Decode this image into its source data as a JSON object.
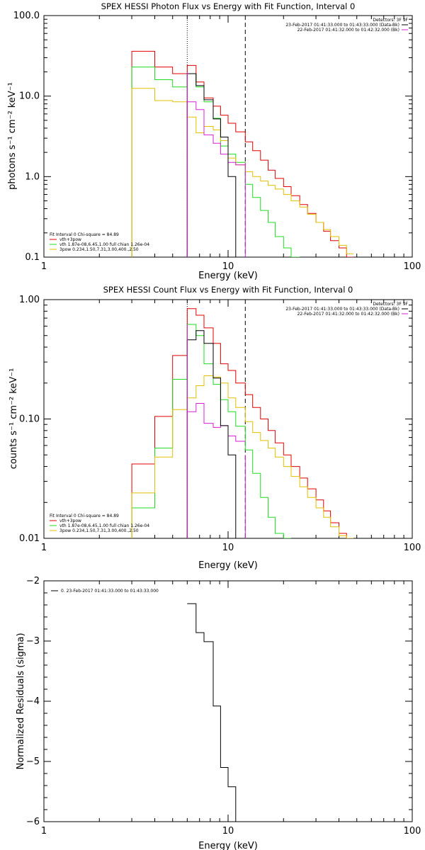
{
  "colors": {
    "black": "#000000",
    "red": "#e00000",
    "green": "#1fdc1f",
    "magenta": "#d81fd8",
    "yellow": "#e0c000",
    "blue": "#2020ff"
  },
  "chart_data": [
    {
      "type": "line",
      "title": "SPEX HESSI Photon Flux vs Energy with Fit Function, Interval 0",
      "xlabel": "Energy (keV)",
      "ylabel": "photons s⁻¹ cm⁻² keV⁻¹",
      "xscale": "log",
      "yscale": "log",
      "xlim": [
        1,
        100
      ],
      "ylim": [
        0.1,
        100
      ],
      "xticks": [
        {
          "v": 1,
          "label": "1"
        },
        {
          "v": 10,
          "label": "10"
        },
        {
          "v": 100,
          "label": "100"
        }
      ],
      "yticks": [
        {
          "v": 0.1,
          "label": "0.1"
        },
        {
          "v": 1,
          "label": "1.0"
        },
        {
          "v": 10,
          "label": "10.0"
        },
        {
          "v": 100,
          "label": "100.0"
        }
      ],
      "vlines": [
        {
          "x": 6,
          "style": "dotted",
          "color": "black"
        },
        {
          "x": 12.4,
          "style": "dashed",
          "color": "black"
        }
      ],
      "edges": [
        3,
        4,
        5,
        6,
        6.7,
        7.4,
        8.3,
        9.1,
        10,
        11,
        12.4,
        13.6,
        15,
        16.5,
        18,
        20,
        22,
        24.5,
        27,
        30,
        33,
        36,
        40,
        44,
        48
      ],
      "series": [
        {
          "key": "red",
          "color": "red",
          "values": [
            36,
            23,
            19,
            24,
            15,
            9.5,
            7.5,
            5.8,
            4.6,
            3.6,
            2.7,
            2.1,
            1.6,
            1.2,
            0.95,
            0.75,
            0.58,
            0.45,
            0.35,
            0.27,
            0.21,
            0.16,
            0.13,
            0.1
          ]
        },
        {
          "key": "green",
          "color": "green",
          "values": [
            23,
            16,
            13,
            19,
            13,
            8.5,
            5.3,
            2.4,
            1.9,
            1.5,
            0.8,
            0.55,
            0.38,
            0.27,
            0.18,
            0.13,
            0.1
          ]
        },
        {
          "key": "yellow",
          "color": "yellow",
          "values": [
            12.5,
            8.8,
            8.5,
            5.5,
            3.5,
            4.2,
            3.8,
            2.8,
            1.7,
            1.4,
            1.15,
            1.0,
            0.88,
            0.78,
            0.7,
            0.6,
            0.5,
            0.42,
            0.34,
            0.27,
            0.22,
            0.18,
            0.14,
            0.11
          ]
        },
        {
          "key": "magenta",
          "color": "magenta",
          "startIndex": 3,
          "values": [
            8.5,
            6.8,
            3.3,
            2.6,
            1.9,
            1.5,
            1.4
          ]
        },
        {
          "key": "black",
          "color": "black",
          "startIndex": 3,
          "values": [
            19,
            13.5,
            9,
            5.2,
            3.1,
            1.0,
            0.1
          ]
        }
      ],
      "vertical_segments": [
        {
          "x": 6,
          "from": 0.1,
          "to": 20,
          "color": "magenta"
        },
        {
          "x": 12.4,
          "from": 0.1,
          "to": 1.5,
          "color": "magenta"
        }
      ],
      "legend_topright": {
        "heading": "Detectors: 3F 9F",
        "lines": [
          {
            "text": "23-Feb-2017 01:41:33.000 to 01:43:33.000 (Data-Bk)",
            "color": "black"
          },
          {
            "text": "22-Feb-2017 01:41:32.000 to 01:42:32.000 (Bk)",
            "color": "magenta"
          }
        ]
      },
      "legend_bottomleft": {
        "heading": "Fit Interval 0   Chi-square = 84.89",
        "lines": [
          {
            "text": "vth+3pow",
            "color": "red"
          },
          {
            "text": "vth 1.87e-08,6.45,1.00  full chian 1.26e-04",
            "color": "green"
          },
          {
            "text": "3pow 0.234,1.50,7.31,3.00,400.,2.50",
            "color": "yellow"
          }
        ]
      }
    },
    {
      "type": "line",
      "title": "SPEX HESSI Count Flux vs Energy with Fit Function, Interval 0",
      "xlabel": "Energy (keV)",
      "ylabel": "counts s⁻¹ cm⁻² keV⁻¹",
      "xscale": "log",
      "yscale": "log",
      "xlim": [
        1,
        100
      ],
      "ylim": [
        0.01,
        1
      ],
      "xticks": [
        {
          "v": 1,
          "label": "1"
        },
        {
          "v": 10,
          "label": "10"
        },
        {
          "v": 100,
          "label": "100"
        }
      ],
      "yticks": [
        {
          "v": 0.01,
          "label": "0.01"
        },
        {
          "v": 0.1,
          "label": "0.10"
        },
        {
          "v": 1,
          "label": "1.00"
        }
      ],
      "vlines": [
        {
          "x": 6,
          "style": "dotted",
          "color": "black"
        },
        {
          "x": 12.4,
          "style": "dashed",
          "color": "black"
        }
      ],
      "edges": [
        3,
        4,
        5,
        6,
        6.7,
        7.4,
        8.3,
        9.1,
        10,
        11,
        12.4,
        13.6,
        15,
        16.5,
        18,
        20,
        22,
        24.5,
        27,
        30,
        33,
        36,
        40,
        44,
        48,
        53,
        58
      ],
      "series": [
        {
          "key": "red",
          "color": "red",
          "values": [
            0.042,
            0.105,
            0.34,
            0.84,
            0.74,
            0.58,
            0.43,
            0.29,
            0.255,
            0.2,
            0.16,
            0.125,
            0.1,
            0.08,
            0.063,
            0.05,
            0.04,
            0.032,
            0.026,
            0.021,
            0.017,
            0.0135,
            0.011,
            0.01
          ]
        },
        {
          "key": "green",
          "color": "green",
          "values": [
            0.018,
            0.057,
            0.215,
            0.62,
            0.5,
            0.29,
            0.195,
            0.145,
            0.115,
            0.087,
            0.055,
            0.035,
            0.022,
            0.015,
            0.011,
            0.0095
          ]
        },
        {
          "key": "yellow",
          "color": "yellow",
          "values": [
            0.024,
            0.048,
            0.12,
            0.15,
            0.19,
            0.23,
            0.225,
            0.2,
            0.15,
            0.125,
            0.095,
            0.077,
            0.066,
            0.057,
            0.048,
            0.04,
            0.033,
            0.027,
            0.022,
            0.018,
            0.015,
            0.0125,
            0.0105,
            0.009
          ]
        },
        {
          "key": "magenta",
          "color": "magenta",
          "startIndex": 3,
          "values": [
            0.115,
            0.135,
            0.092,
            0.085,
            0.088,
            0.072,
            0.065
          ]
        },
        {
          "key": "black",
          "color": "black",
          "startIndex": 3,
          "values": [
            0.46,
            0.55,
            0.43,
            0.22,
            0.088,
            0.05,
            0.009
          ]
        }
      ],
      "vertical_segments": [
        {
          "x": 6,
          "from": 0.01,
          "to": 0.62,
          "color": "magenta"
        },
        {
          "x": 12.4,
          "from": 0.01,
          "to": 0.05,
          "color": "magenta"
        }
      ],
      "legend_topright": {
        "heading": "Detectors: 3F 9F",
        "lines": [
          {
            "text": "23-Feb-2017 01:41:33.000 to 01:43:33.000 (Data-Bk)",
            "color": "black"
          },
          {
            "text": "22-Feb-2017 01:41:32.000 to 01:42:32.000 (Bk)",
            "color": "magenta"
          }
        ]
      },
      "legend_bottomleft": {
        "heading": "Fit Interval 0   Chi-square = 84.89",
        "lines": [
          {
            "text": "vth+3pow",
            "color": "red"
          },
          {
            "text": "vth 1.87e-08,6.45,1.00  full chian 1.26e-04",
            "color": "green"
          },
          {
            "text": "3pow 0.234,1.50,7.31,3.00,400.,2.50",
            "color": "yellow"
          }
        ]
      }
    },
    {
      "type": "line",
      "title": "",
      "xlabel": "Energy (keV)",
      "ylabel": "Normalized Residuals (sigma)",
      "xscale": "log",
      "yscale": "linear",
      "xlim": [
        1,
        100
      ],
      "ylim": [
        -6,
        -2
      ],
      "xticks": [
        {
          "v": 1,
          "label": "1"
        },
        {
          "v": 10,
          "label": "10"
        },
        {
          "v": 100,
          "label": "100"
        }
      ],
      "yticks": [
        {
          "v": -6,
          "label": "−6"
        },
        {
          "v": -5,
          "label": "−5"
        },
        {
          "v": -4,
          "label": "−4"
        },
        {
          "v": -3,
          "label": "−3"
        },
        {
          "v": -2,
          "label": "−2"
        }
      ],
      "vlines": [],
      "edges": [
        6,
        6.7,
        7.4,
        8.3,
        9.1,
        10,
        11,
        12.4
      ],
      "series": [
        {
          "key": "black",
          "color": "black",
          "values": [
            -2.38,
            -2.86,
            -3.01,
            -4.08,
            -5.1,
            -5.42,
            -6.0
          ]
        }
      ],
      "vertical_segments": [],
      "legend_topleft": {
        "lines": [
          {
            "text": "0. 23-Feb-2017 01:41:33.000 to 01:43:33.000",
            "color": "black"
          }
        ]
      }
    }
  ]
}
